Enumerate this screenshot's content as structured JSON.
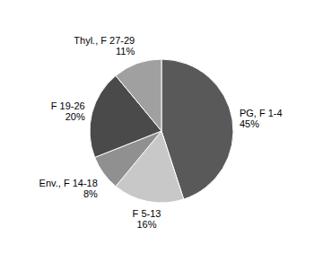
{
  "chart_data": {
    "type": "pie",
    "categories": [
      "PG, F 1-4",
      "F 5-13",
      "Env., F 14-18",
      "F 19-26",
      "Thyl., F 27-29"
    ],
    "values": [
      45,
      16,
      8,
      20,
      11
    ],
    "value_labels": [
      "45%",
      "16%",
      "8%",
      "20%",
      "11%"
    ],
    "colors": [
      "#595959",
      "#c8c8c8",
      "#909090",
      "#4a4a4a",
      "#a0a0a0"
    ],
    "data_labels": true
  }
}
